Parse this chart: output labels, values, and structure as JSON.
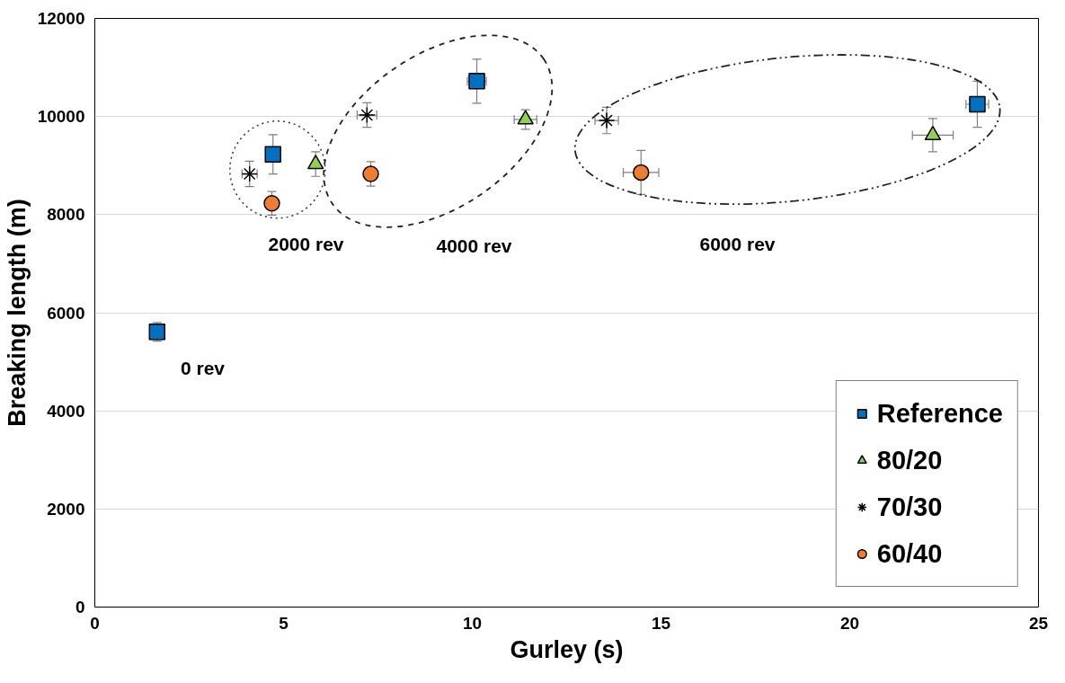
{
  "chart_data": {
    "type": "scatter",
    "xlabel": "Gurley (s)",
    "ylabel": "Breaking length (m)",
    "xlim": [
      0,
      25
    ],
    "xticks": [
      0,
      5,
      10,
      15,
      20,
      25
    ],
    "ylim": [
      0,
      12000
    ],
    "yticks": [
      0,
      2000,
      4000,
      6000,
      8000,
      10000,
      12000
    ],
    "grid": "y",
    "legend": "bottom right",
    "series": [
      {
        "name": "Reference",
        "color": "#0070c0",
        "marker": "square",
        "x": [
          1.65,
          4.72,
          10.12,
          23.38
        ],
        "values": [
          5610,
          9230,
          10720,
          10250
        ],
        "errors": [
          190,
          400,
          450,
          470
        ],
        "xerrors": [
          null,
          null,
          0.25,
          0.3
        ]
      },
      {
        "name": "80/20",
        "color": "#92d050",
        "marker": "triangle",
        "x": [
          5.85,
          11.41,
          22.2
        ],
        "values": [
          9030,
          9940,
          9620
        ],
        "errors": [
          250,
          200,
          340
        ],
        "xerrors": [
          null,
          0.3,
          0.54
        ]
      },
      {
        "name": "70/30",
        "color": "#000000",
        "marker": "cross",
        "x": [
          4.1,
          7.21,
          13.56
        ],
        "values": [
          8830,
          10030,
          9920
        ],
        "errors": [
          260,
          250,
          270
        ],
        "xerrors": [
          0.2,
          0.26,
          0.31
        ]
      },
      {
        "name": "60/40",
        "color": "#ed7d31",
        "marker": "circle",
        "x": [
          4.69,
          7.31,
          14.47
        ],
        "values": [
          8230,
          8830,
          8860
        ],
        "errors": [
          240,
          250,
          450
        ],
        "xerrors": [
          null,
          null,
          0.47
        ]
      }
    ],
    "annotations": [
      "0 rev",
      "2000 rev",
      "4000 rev",
      "6000 rev"
    ]
  }
}
